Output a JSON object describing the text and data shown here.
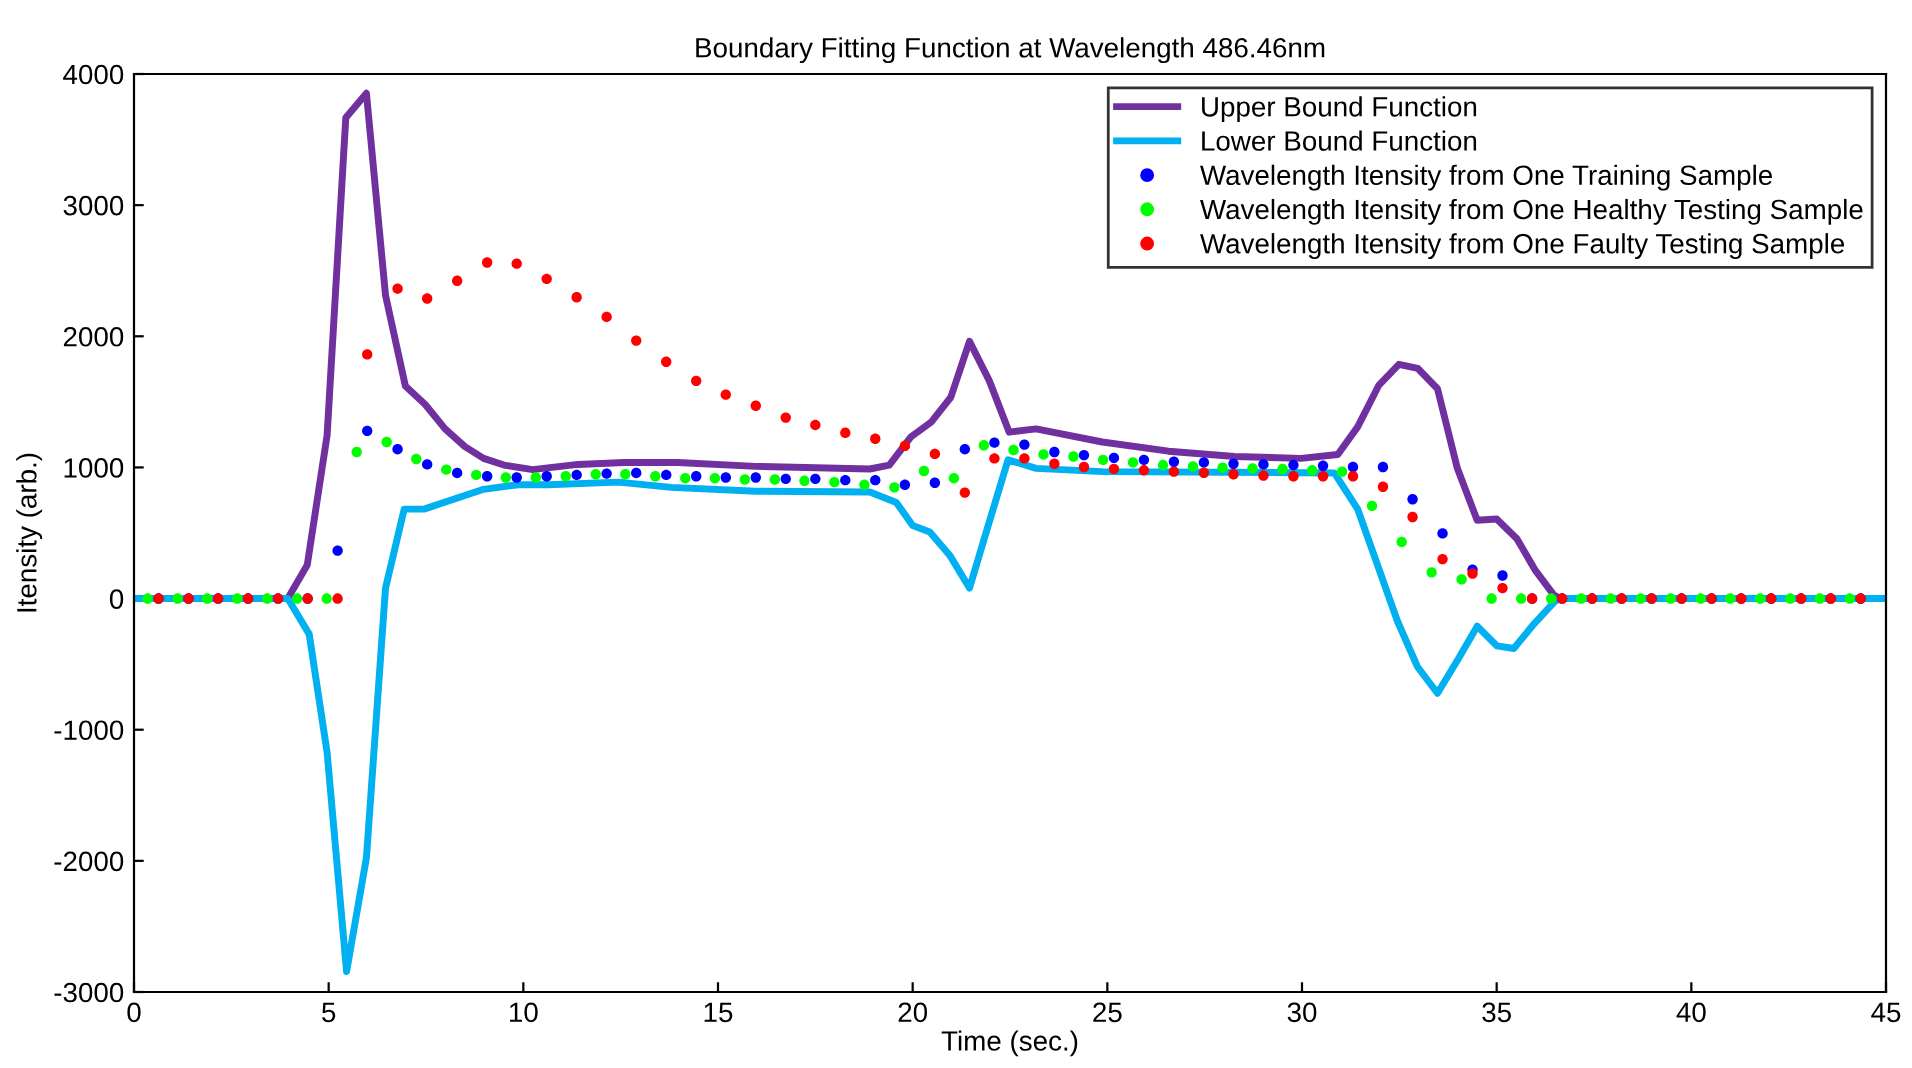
{
  "chart_data": {
    "type": "line",
    "title": "Boundary Fitting Function at Wavelength 486.46nm",
    "xlabel": "Time (sec.)",
    "ylabel": "Itensity (arb.)",
    "xlim": [
      0,
      45
    ],
    "ylim": [
      -3000,
      4000
    ],
    "xticks": [
      0,
      5,
      10,
      15,
      20,
      25,
      30,
      35,
      40,
      45
    ],
    "yticks": [
      -3000,
      -2000,
      -1000,
      0,
      1000,
      2000,
      3000,
      4000
    ],
    "grid": false,
    "legend": "top right",
    "series": [
      {
        "name": "Upper Bound Function",
        "marker": "none",
        "line_style": "solid",
        "color": "#7030a0",
        "x": [
          0,
          3.95,
          4.45,
          4.96,
          5.44,
          5.97,
          6.46,
          6.97,
          7.48,
          7.99,
          8.5,
          8.98,
          9.5,
          10.24,
          11.4,
          12.6,
          13.96,
          15.97,
          18.9,
          19.4,
          19.96,
          20.47,
          20.98,
          21.46,
          21.97,
          22.48,
          23.17,
          24.87,
          26.57,
          28.27,
          29.98,
          30.92,
          31.43,
          31.97,
          32.49,
          32.97,
          33.48,
          33.99,
          34.5,
          35.0,
          35.52,
          35.98,
          36.46,
          36.63,
          45
        ],
        "values": [
          0,
          0,
          256,
          1245,
          3667,
          3853,
          2313,
          1621,
          1480,
          1294,
          1159,
          1069,
          1018,
          983,
          1023,
          1038,
          1038,
          1008,
          988,
          1018,
          1234,
          1344,
          1535,
          1961,
          1660,
          1269,
          1294,
          1194,
          1124,
          1083,
          1069,
          1099,
          1309,
          1625,
          1786,
          1756,
          1600,
          993,
          597,
          607,
          456,
          221,
          30,
          0,
          0
        ]
      },
      {
        "name": "Lower Bound Function",
        "marker": "none",
        "line_style": "solid",
        "color": "#00b0f0",
        "x": [
          0,
          3.95,
          4.5,
          4.96,
          5.46,
          5.97,
          6.46,
          6.94,
          7.45,
          8.98,
          9.86,
          10.64,
          12.44,
          13.8,
          15.97,
          18.9,
          19.58,
          20.0,
          20.44,
          20.95,
          21.46,
          21.94,
          22.45,
          23.17,
          24.87,
          30.83,
          31.43,
          32.45,
          32.97,
          33.48,
          33.99,
          34.5,
          35.01,
          35.44,
          35.95,
          36.5,
          36.63,
          45
        ],
        "values": [
          0,
          0,
          -271,
          -1174,
          -2844,
          -1976,
          80,
          682,
          682,
          833,
          868,
          868,
          888,
          848,
          818,
          813,
          733,
          557,
          507,
          331,
          80,
          557,
          1058,
          993,
          968,
          958,
          682,
          -171,
          -522,
          -722,
          -472,
          -211,
          -361,
          -381,
          -196,
          -20,
          0,
          0
        ]
      },
      {
        "name": "Wavelength Itensity from One Training Sample",
        "type": "scatter",
        "marker": "circle",
        "color": "#0000ff",
        "x": [
          0.63,
          1.4,
          2.16,
          2.93,
          3.7,
          4.46,
          5.23,
          5.99,
          6.77,
          7.53,
          8.3,
          9.07,
          9.83,
          10.6,
          11.37,
          12.14,
          12.9,
          13.67,
          14.44,
          15.2,
          15.97,
          16.74,
          17.5,
          18.27,
          19.04,
          19.8,
          20.57,
          21.34,
          22.1,
          22.87,
          23.64,
          24.4,
          25.17,
          25.94,
          26.71,
          27.48,
          28.24,
          29.01,
          29.78,
          30.54,
          31.31,
          32.08,
          32.84,
          33.61,
          34.38,
          35.15,
          35.91,
          36.68,
          37.45,
          38.21,
          38.98,
          39.75,
          40.52,
          41.28,
          42.05,
          42.82,
          43.58,
          44.35
        ],
        "values": [
          0,
          0,
          0,
          0,
          0,
          0,
          366,
          1279,
          1139,
          1023,
          958,
          933,
          923,
          933,
          943,
          953,
          958,
          943,
          933,
          923,
          923,
          913,
          913,
          903,
          903,
          868,
          883,
          1139,
          1189,
          1174,
          1118,
          1094,
          1073,
          1058,
          1043,
          1038,
          1028,
          1023,
          1018,
          1013,
          1003,
          1003,
          757,
          497,
          221,
          176,
          0,
          0,
          0,
          0,
          0,
          0,
          0,
          0,
          0,
          0,
          0,
          0
        ]
      },
      {
        "name": "Wavelength Itensity from One Healthy Testing Sample",
        "type": "scatter",
        "marker": "circle",
        "color": "#00ff00",
        "x": [
          0.35,
          1.12,
          1.88,
          2.65,
          3.42,
          4.19,
          4.95,
          5.72,
          6.49,
          7.25,
          8.02,
          8.79,
          9.55,
          10.32,
          11.09,
          11.86,
          12.62,
          13.39,
          14.16,
          14.92,
          15.69,
          16.46,
          17.22,
          17.99,
          18.76,
          19.53,
          20.29,
          21.06,
          21.83,
          22.59,
          23.36,
          24.13,
          24.89,
          25.66,
          26.43,
          27.2,
          27.96,
          28.73,
          29.5,
          30.26,
          31.03,
          31.8,
          32.56,
          33.33,
          34.1,
          34.87,
          35.63,
          36.4,
          37.17,
          37.93,
          38.7,
          39.47,
          40.24,
          41.0,
          41.77,
          42.54,
          43.3,
          44.07
        ],
        "values": [
          0,
          0,
          0,
          0,
          0,
          0,
          0,
          1118,
          1194,
          1064,
          983,
          943,
          923,
          923,
          933,
          948,
          948,
          933,
          918,
          918,
          908,
          908,
          898,
          888,
          868,
          848,
          973,
          918,
          1169,
          1133,
          1099,
          1083,
          1058,
          1038,
          1018,
          1008,
          998,
          993,
          988,
          978,
          968,
          707,
          432,
          200,
          146,
          0,
          0,
          0,
          0,
          0,
          0,
          0,
          0,
          0,
          0,
          0,
          0,
          0
        ]
      },
      {
        "name": "Wavelength Itensity from One Faulty Testing Sample",
        "type": "scatter",
        "marker": "circle",
        "color": "#ff0000",
        "x": [
          0.63,
          1.4,
          2.16,
          2.93,
          3.7,
          4.46,
          5.23,
          5.99,
          6.77,
          7.53,
          8.3,
          9.07,
          9.83,
          10.6,
          11.37,
          12.14,
          12.9,
          13.67,
          14.44,
          15.2,
          15.97,
          16.74,
          17.5,
          18.27,
          19.04,
          19.8,
          20.57,
          21.34,
          22.1,
          22.87,
          23.64,
          24.4,
          25.17,
          25.94,
          26.71,
          27.48,
          28.24,
          29.01,
          29.78,
          30.54,
          31.31,
          32.08,
          32.84,
          33.61,
          34.38,
          35.15,
          35.91,
          36.68,
          37.45,
          38.21,
          38.98,
          39.75,
          40.52,
          41.28,
          42.05,
          42.82,
          43.58,
          44.35
        ],
        "values": [
          0,
          0,
          0,
          0,
          0,
          0,
          0,
          1862,
          2363,
          2288,
          2423,
          2563,
          2554,
          2438,
          2298,
          2148,
          1967,
          1806,
          1660,
          1555,
          1470,
          1380,
          1324,
          1264,
          1219,
          1164,
          1103,
          808,
          1069,
          1069,
          1028,
          1003,
          989,
          978,
          968,
          959,
          948,
          938,
          933,
          933,
          933,
          853,
          622,
          301,
          191,
          80,
          0,
          0,
          0,
          0,
          0,
          0,
          0,
          0,
          0,
          0,
          0,
          0
        ]
      }
    ]
  }
}
